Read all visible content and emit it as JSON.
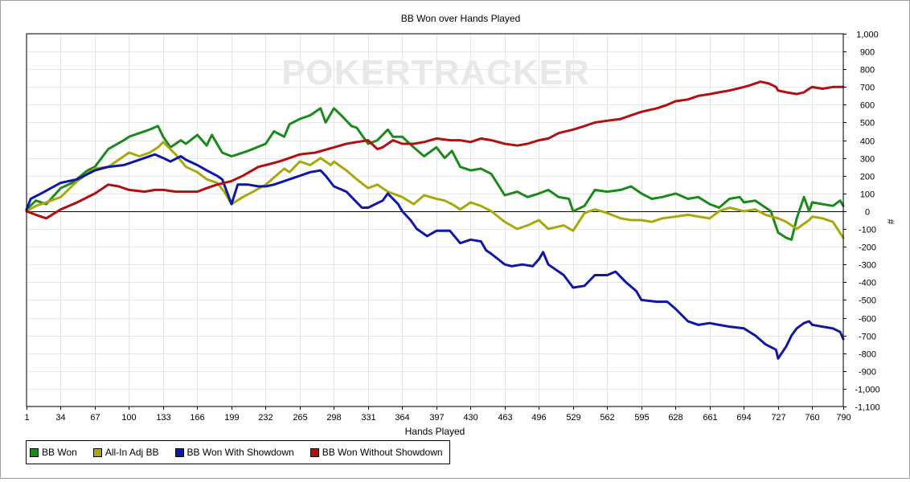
{
  "chart_data": {
    "type": "line",
    "title": "BB Won over Hands Played",
    "xlabel": "Hands Played",
    "ylabel": "#",
    "xlim": [
      1,
      790
    ],
    "ylim": [
      -1100,
      1000
    ],
    "x_ticks": [
      1,
      34,
      67,
      100,
      133,
      166,
      199,
      232,
      265,
      298,
      331,
      364,
      397,
      430,
      463,
      496,
      529,
      562,
      595,
      628,
      661,
      694,
      727,
      760,
      790
    ],
    "y_ticks": [
      1000,
      900,
      800,
      700,
      600,
      500,
      400,
      300,
      200,
      100,
      0,
      -100,
      -200,
      -300,
      -400,
      -500,
      -600,
      -700,
      -800,
      -900,
      -1000,
      -1100
    ],
    "y_tick_labels": [
      "1,000",
      "900",
      "800",
      "700",
      "600",
      "500",
      "400",
      "300",
      "200",
      "100",
      "0",
      "-100",
      "-200",
      "-300",
      "-400",
      "-500",
      "-600",
      "-700",
      "-800",
      "-900",
      "-1,000",
      "-1,100"
    ],
    "grid": true,
    "legend_position": "bottom-left",
    "watermark": "POKERTRACKER",
    "series": [
      {
        "name": "BB Won",
        "color": "#1a8a1a",
        "x": [
          1,
          10,
          20,
          34,
          45,
          60,
          67,
          80,
          95,
          100,
          110,
          120,
          128,
          133,
          140,
          150,
          155,
          166,
          175,
          180,
          190,
          199,
          205,
          215,
          232,
          240,
          250,
          255,
          265,
          275,
          285,
          290,
          298,
          305,
          315,
          320,
          331,
          340,
          350,
          355,
          364,
          375,
          385,
          397,
          405,
          412,
          420,
          430,
          440,
          450,
          463,
          475,
          485,
          496,
          505,
          515,
          525,
          529,
          540,
          550,
          562,
          575,
          585,
          595,
          605,
          615,
          628,
          640,
          650,
          661,
          670,
          680,
          690,
          694,
          705,
          715,
          720,
          727,
          735,
          740,
          745,
          752,
          757,
          760,
          770,
          780,
          787,
          790
        ],
        "values": [
          10,
          60,
          40,
          130,
          160,
          230,
          250,
          350,
          400,
          420,
          440,
          460,
          480,
          420,
          360,
          400,
          380,
          430,
          370,
          430,
          330,
          310,
          320,
          340,
          380,
          450,
          420,
          490,
          520,
          540,
          580,
          500,
          580,
          540,
          480,
          470,
          380,
          400,
          460,
          420,
          420,
          360,
          310,
          360,
          300,
          340,
          250,
          230,
          240,
          210,
          90,
          110,
          80,
          100,
          120,
          80,
          70,
          0,
          30,
          120,
          110,
          120,
          140,
          100,
          70,
          80,
          100,
          70,
          80,
          40,
          20,
          70,
          80,
          50,
          60,
          20,
          0,
          -120,
          -150,
          -160,
          -40,
          80,
          0,
          50,
          40,
          30,
          60,
          30
        ]
      },
      {
        "name": "All-In Adj BB",
        "color": "#a8a80e",
        "x": [
          1,
          10,
          20,
          34,
          50,
          67,
          80,
          95,
          100,
          110,
          120,
          128,
          133,
          145,
          155,
          166,
          175,
          185,
          192,
          199,
          210,
          220,
          232,
          240,
          250,
          255,
          265,
          275,
          285,
          295,
          298,
          310,
          320,
          331,
          340,
          350,
          364,
          375,
          385,
          397,
          405,
          412,
          420,
          430,
          440,
          450,
          463,
          475,
          485,
          496,
          505,
          520,
          529,
          540,
          550,
          562,
          575,
          585,
          595,
          605,
          615,
          628,
          640,
          650,
          661,
          670,
          680,
          694,
          705,
          715,
          727,
          735,
          745,
          757,
          760,
          770,
          780,
          790
        ],
        "values": [
          0,
          30,
          50,
          80,
          170,
          240,
          250,
          310,
          330,
          310,
          330,
          360,
          390,
          320,
          250,
          220,
          180,
          160,
          110,
          40,
          80,
          110,
          150,
          190,
          240,
          220,
          280,
          260,
          300,
          260,
          280,
          230,
          180,
          130,
          150,
          110,
          80,
          40,
          90,
          70,
          60,
          40,
          10,
          50,
          30,
          0,
          -60,
          -100,
          -80,
          -50,
          -100,
          -80,
          -110,
          -10,
          10,
          -10,
          -40,
          -50,
          -50,
          -60,
          -40,
          -30,
          -20,
          -30,
          -40,
          0,
          20,
          0,
          10,
          -20,
          -40,
          -60,
          -100,
          -50,
          -30,
          -40,
          -60,
          -150
        ]
      },
      {
        "name": "BB Won With Showdown",
        "color": "#0f17a8",
        "x": [
          1,
          5,
          15,
          34,
          50,
          67,
          80,
          95,
          100,
          115,
          125,
          133,
          140,
          150,
          155,
          166,
          175,
          185,
          190,
          199,
          205,
          215,
          225,
          232,
          240,
          250,
          255,
          265,
          275,
          285,
          290,
          298,
          310,
          320,
          325,
          331,
          345,
          350,
          360,
          364,
          372,
          378,
          388,
          397,
          405,
          410,
          420,
          430,
          440,
          445,
          450,
          463,
          470,
          480,
          490,
          496,
          500,
          505,
          520,
          529,
          540,
          550,
          562,
          570,
          580,
          590,
          595,
          610,
          620,
          628,
          640,
          650,
          661,
          670,
          680,
          694,
          705,
          715,
          725,
          727,
          735,
          740,
          745,
          752,
          757,
          760,
          770,
          780,
          787,
          790
        ],
        "values": [
          10,
          70,
          100,
          160,
          180,
          230,
          250,
          260,
          270,
          300,
          320,
          300,
          280,
          310,
          290,
          260,
          230,
          200,
          180,
          40,
          150,
          150,
          140,
          140,
          150,
          170,
          180,
          200,
          220,
          230,
          200,
          140,
          110,
          50,
          20,
          20,
          60,
          100,
          40,
          0,
          -50,
          -100,
          -140,
          -110,
          -110,
          -110,
          -180,
          -160,
          -170,
          -220,
          -240,
          -300,
          -310,
          -300,
          -310,
          -270,
          -230,
          -300,
          -360,
          -430,
          -420,
          -360,
          -360,
          -340,
          -400,
          -450,
          -500,
          -510,
          -510,
          -550,
          -620,
          -640,
          -630,
          -640,
          -650,
          -660,
          -700,
          -750,
          -780,
          -830,
          -760,
          -700,
          -660,
          -630,
          -620,
          -640,
          -650,
          -660,
          -680,
          -720
        ]
      },
      {
        "name": "BB Won Without Showdown",
        "color": "#b20f0f",
        "x": [
          1,
          10,
          20,
          34,
          50,
          67,
          80,
          90,
          100,
          115,
          125,
          133,
          145,
          155,
          166,
          175,
          185,
          199,
          210,
          225,
          232,
          245,
          255,
          265,
          280,
          298,
          310,
          320,
          331,
          340,
          345,
          355,
          364,
          375,
          385,
          397,
          410,
          420,
          430,
          440,
          450,
          463,
          475,
          485,
          496,
          505,
          515,
          529,
          540,
          550,
          562,
          575,
          585,
          595,
          610,
          620,
          628,
          640,
          650,
          661,
          670,
          680,
          694,
          700,
          705,
          710,
          718,
          725,
          727,
          735,
          745,
          752,
          757,
          760,
          770,
          780,
          790
        ],
        "values": [
          0,
          -20,
          -40,
          10,
          50,
          100,
          150,
          140,
          120,
          110,
          120,
          120,
          110,
          110,
          110,
          130,
          150,
          170,
          200,
          250,
          260,
          280,
          300,
          320,
          330,
          360,
          380,
          390,
          400,
          350,
          360,
          400,
          380,
          380,
          390,
          410,
          400,
          400,
          390,
          410,
          400,
          380,
          370,
          380,
          400,
          410,
          440,
          460,
          480,
          500,
          510,
          520,
          540,
          560,
          580,
          600,
          620,
          630,
          650,
          660,
          670,
          680,
          700,
          710,
          720,
          730,
          720,
          700,
          680,
          670,
          660,
          670,
          690,
          700,
          690,
          700,
          700
        ]
      }
    ]
  }
}
